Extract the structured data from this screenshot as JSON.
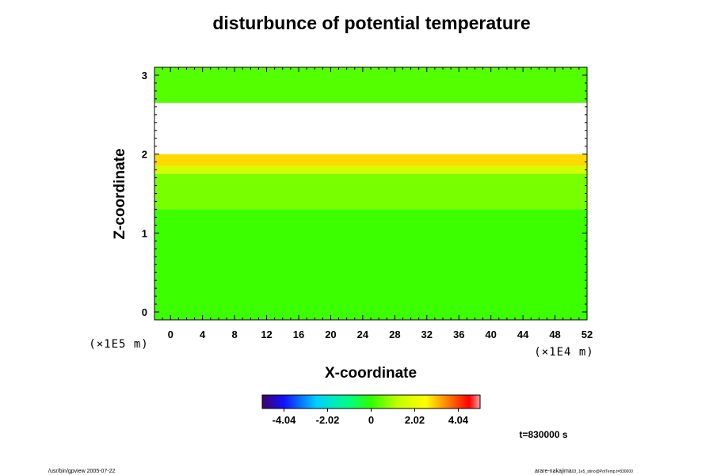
{
  "chart_data": {
    "type": "heatmap",
    "title": "disturbunce of potential temperature",
    "xlabel": "X-coordinate",
    "ylabel": "Z-coordinate",
    "x_unit": "(×1E4 m)",
    "y_unit": "(×1E5 m)",
    "xlim": [
      -2,
      52
    ],
    "ylim": [
      -0.1,
      3.1
    ],
    "x_ticks": [
      0,
      4,
      8,
      12,
      16,
      20,
      24,
      28,
      32,
      36,
      40,
      44,
      48,
      52
    ],
    "y_ticks": [
      0,
      1,
      2,
      3
    ],
    "colorbar": {
      "min": -5.05,
      "max": 5.05,
      "ticks": [
        -4.04,
        -2.02,
        0,
        2.02,
        4.04
      ],
      "tick_labels": [
        "-4.04",
        "-2.02",
        "0",
        "2.02",
        "4.04"
      ]
    },
    "regions": [
      {
        "z_from": -0.1,
        "z_to": 1.3,
        "value": 0.1
      },
      {
        "z_from": 1.3,
        "z_to": 1.75,
        "value": 0.6
      },
      {
        "z_from": 1.75,
        "z_to": 1.85,
        "value": 1.6
      },
      {
        "z_from": 1.85,
        "z_to": 2.0,
        "value": 2.8
      },
      {
        "z_from": 2.0,
        "z_to": 2.65,
        "value": null
      },
      {
        "z_from": 2.65,
        "z_to": 3.1,
        "value": 0.3
      }
    ],
    "time_label": "t=830000 s"
  },
  "footer": {
    "left": "/usr/bin/gpview 2005-07-22",
    "right_main": "arare-nakajima",
    "right_sub": "03_1e5_stino@PotTemp,t=830000"
  }
}
